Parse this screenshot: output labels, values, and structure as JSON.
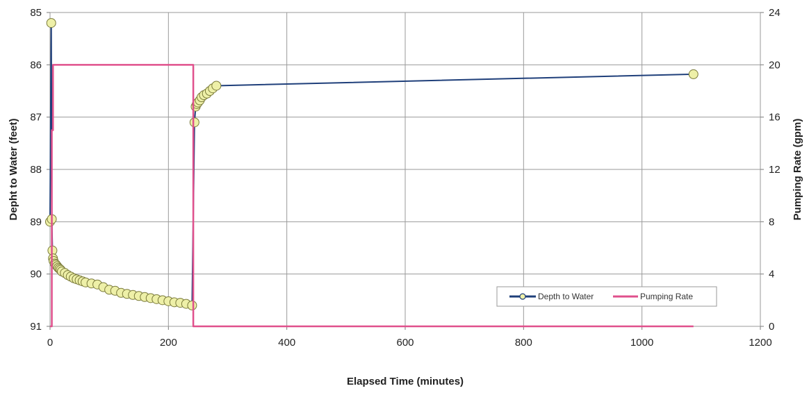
{
  "chart_data": {
    "type": "line",
    "title": "",
    "xlabel": "Elapsed Time (minutes)",
    "ylabel_left": "Depht to Water (feet)",
    "ylabel_right": "Pumping Rate (gpm)",
    "xlim": [
      0,
      1200
    ],
    "ylim_left": [
      91,
      85
    ],
    "ylim_left_inverted": true,
    "ylim_right": [
      0,
      24
    ],
    "x_ticks": [
      "0",
      "200",
      "400",
      "600",
      "800",
      "1000",
      "1200"
    ],
    "y_left_ticks": [
      "85",
      "86",
      "87",
      "88",
      "89",
      "90",
      "91"
    ],
    "y_right_ticks": [
      "0",
      "4",
      "8",
      "12",
      "16",
      "20",
      "24"
    ],
    "grid": true,
    "legend_position": "lower-right",
    "series": [
      {
        "name": "Depth to Water",
        "axis": "left",
        "color": "#1f3f7a",
        "marker_fill": "#eef0a8",
        "points": [
          [
            0,
            89.0
          ],
          [
            2,
            85.2
          ],
          [
            3,
            88.95
          ],
          [
            4,
            89.55
          ],
          [
            5,
            89.7
          ],
          [
            6,
            89.75
          ],
          [
            8,
            89.8
          ],
          [
            10,
            89.82
          ],
          [
            12,
            89.85
          ],
          [
            14,
            89.88
          ],
          [
            16,
            89.9
          ],
          [
            18,
            89.92
          ],
          [
            20,
            89.95
          ],
          [
            25,
            89.98
          ],
          [
            30,
            90.02
          ],
          [
            35,
            90.05
          ],
          [
            40,
            90.08
          ],
          [
            45,
            90.1
          ],
          [
            50,
            90.12
          ],
          [
            55,
            90.14
          ],
          [
            60,
            90.16
          ],
          [
            70,
            90.18
          ],
          [
            80,
            90.2
          ],
          [
            90,
            90.25
          ],
          [
            100,
            90.3
          ],
          [
            110,
            90.32
          ],
          [
            120,
            90.36
          ],
          [
            130,
            90.38
          ],
          [
            140,
            90.4
          ],
          [
            150,
            90.42
          ],
          [
            160,
            90.44
          ],
          [
            170,
            90.46
          ],
          [
            180,
            90.48
          ],
          [
            190,
            90.5
          ],
          [
            200,
            90.52
          ],
          [
            210,
            90.54
          ],
          [
            220,
            90.55
          ],
          [
            230,
            90.57
          ],
          [
            240,
            90.6
          ],
          [
            244,
            87.1
          ],
          [
            246,
            86.8
          ],
          [
            248,
            86.75
          ],
          [
            250,
            86.72
          ],
          [
            253,
            86.68
          ],
          [
            256,
            86.62
          ],
          [
            260,
            86.58
          ],
          [
            265,
            86.55
          ],
          [
            270,
            86.5
          ],
          [
            275,
            86.45
          ],
          [
            281,
            86.4
          ],
          [
            1087,
            86.18
          ]
        ]
      },
      {
        "name": "Pumping Rate",
        "axis": "right",
        "color": "#e0508c",
        "points": [
          [
            0,
            0
          ],
          [
            3,
            0
          ],
          [
            3,
            15
          ],
          [
            5,
            15
          ],
          [
            5,
            20
          ],
          [
            242,
            20
          ],
          [
            242,
            0
          ],
          [
            1087,
            0
          ]
        ]
      }
    ]
  }
}
